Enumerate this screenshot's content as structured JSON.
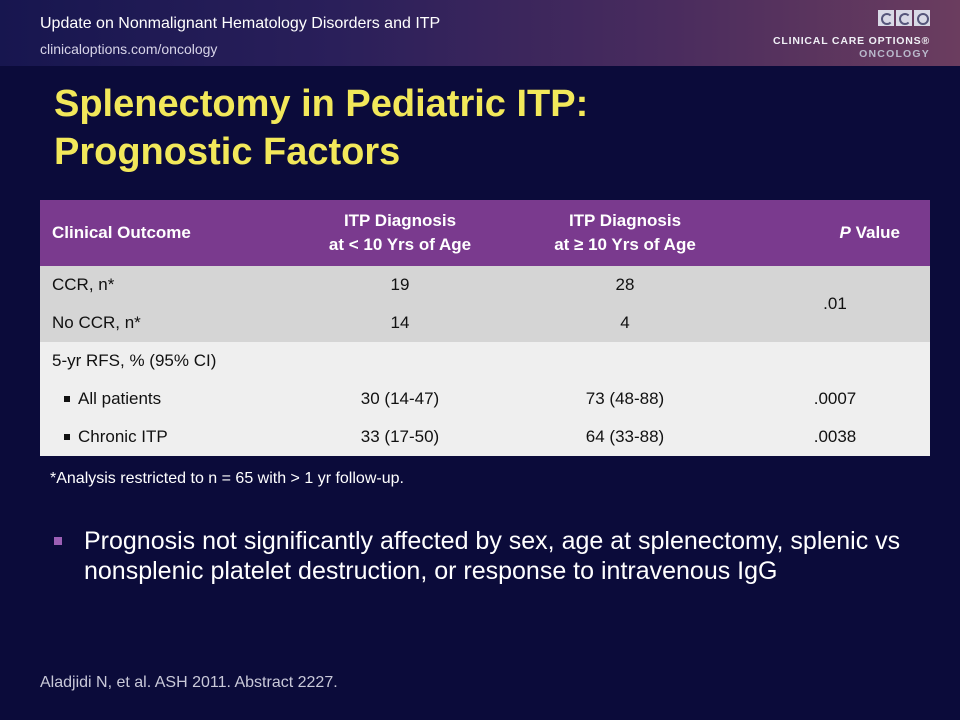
{
  "header": {
    "title": "Update on Nonmalignant Hematology Disorders and ITP",
    "url": "clinicaloptions.com/oncology",
    "logo_line1": "CLINICAL CARE OPTIONS®",
    "logo_line2": "ONCOLOGY"
  },
  "slide": {
    "title_line1": "Splenectomy in Pediatric ITP:",
    "title_line2": "Prognostic Factors"
  },
  "table": {
    "headers": {
      "outcome": "Clinical Outcome",
      "lt10_line1": "ITP Diagnosis",
      "lt10_line2": "at < 10 Yrs of Age",
      "ge10_line1": "ITP Diagnosis",
      "ge10_line2": "at ≥ 10 Yrs of Age",
      "p_italic": "P",
      "p_rest": " Value"
    },
    "ccr": {
      "label": "CCR, n*",
      "lt10": "19",
      "ge10": "28"
    },
    "no_ccr": {
      "label": "No CCR, n*",
      "lt10": "14",
      "ge10": "4"
    },
    "ccr_p": ".01",
    "rfs_label": "5-yr RFS, % (95% CI)",
    "all": {
      "label": "All patients",
      "lt10": "30 (14-47)",
      "ge10": "73 (48-88)",
      "p": ".0007"
    },
    "chronic": {
      "label": "Chronic ITP",
      "lt10": "33 (17-50)",
      "ge10": "64 (33-88)",
      "p": ".0038"
    }
  },
  "footnote": "*Analysis restricted to n = 65 with > 1 yr follow-up.",
  "bullet": "Prognosis not significantly affected by sex, age at splenectomy, splenic vs nonsplenic platelet destruction, or response to intravenous IgG",
  "citation": "Aladjidi N, et al. ASH 2011. Abstract 2227."
}
